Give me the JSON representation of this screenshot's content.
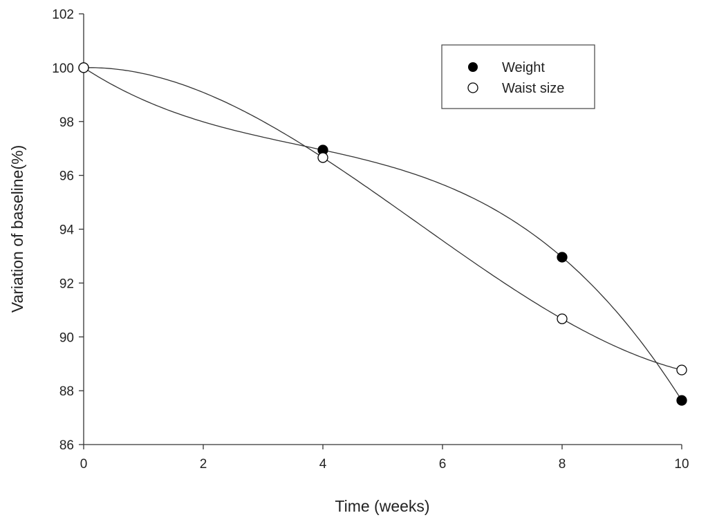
{
  "chart_data": {
    "type": "scatter",
    "title": "",
    "xlabel": "Time (weeks)",
    "ylabel": "Variation of baseline(%)",
    "xlim": [
      0,
      10
    ],
    "ylim": [
      86,
      102
    ],
    "xticks": [
      0,
      2,
      4,
      6,
      8,
      10
    ],
    "yticks": [
      86,
      88,
      90,
      92,
      94,
      96,
      98,
      100,
      102
    ],
    "grid": false,
    "legend_position": "top-right",
    "fit": "smooth curve through points",
    "series": [
      {
        "name": "Weight",
        "marker": "filled-circle",
        "color": "#000000",
        "x": [
          0,
          4,
          8,
          10
        ],
        "y": [
          100,
          96.94,
          92.96,
          87.64
        ]
      },
      {
        "name": "Waist size",
        "marker": "open-circle",
        "color": "#000000",
        "x": [
          0,
          4,
          8,
          10
        ],
        "y": [
          100,
          96.66,
          90.67,
          88.77
        ]
      }
    ]
  }
}
